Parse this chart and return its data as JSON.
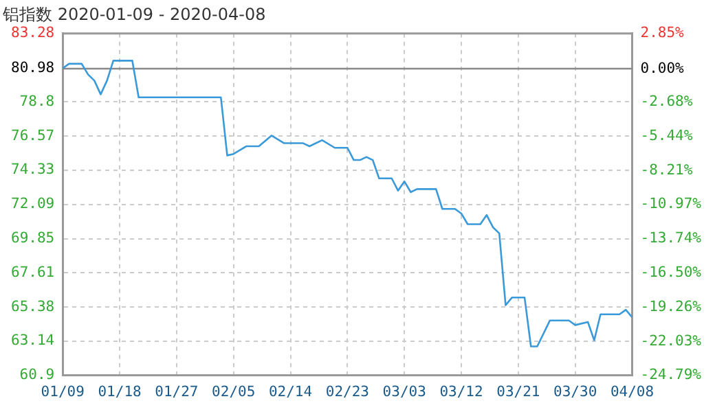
{
  "chart_data": {
    "type": "line",
    "title": "铝指数 2020-01-09 - 2020-04-08",
    "x": [
      "2020-01-09",
      "2020-01-10",
      "2020-01-12",
      "2020-01-13",
      "2020-01-14",
      "2020-01-15",
      "2020-01-16",
      "2020-01-17",
      "2020-01-20",
      "2020-01-21",
      "2020-02-03",
      "2020-02-04",
      "2020-02-05",
      "2020-02-07",
      "2020-02-09",
      "2020-02-11",
      "2020-02-13",
      "2020-02-16",
      "2020-02-17",
      "2020-02-19",
      "2020-02-21",
      "2020-02-23",
      "2020-02-24",
      "2020-02-25",
      "2020-02-26",
      "2020-02-27",
      "2020-02-28",
      "2020-03-01",
      "2020-03-02",
      "2020-03-03",
      "2020-03-04",
      "2020-03-05",
      "2020-03-08",
      "2020-03-09",
      "2020-03-11",
      "2020-03-12",
      "2020-03-13",
      "2020-03-15",
      "2020-03-16",
      "2020-03-17",
      "2020-03-18",
      "2020-03-19",
      "2020-03-20",
      "2020-03-22",
      "2020-03-23",
      "2020-03-24",
      "2020-03-26",
      "2020-03-29",
      "2020-03-30",
      "2020-04-01",
      "2020-04-02",
      "2020-04-03",
      "2020-04-06",
      "2020-04-07",
      "2020-04-08"
    ],
    "series": [
      {
        "color": "#3a9ad9",
        "values": [
          81.0,
          81.3,
          81.3,
          80.6,
          80.2,
          79.3,
          80.2,
          81.5,
          81.5,
          79.1,
          79.1,
          75.3,
          75.4,
          75.9,
          75.9,
          76.6,
          76.1,
          76.1,
          75.9,
          76.3,
          75.8,
          75.8,
          75.0,
          75.0,
          75.2,
          75.0,
          73.8,
          73.8,
          73.0,
          73.6,
          72.9,
          73.1,
          73.1,
          71.8,
          71.8,
          71.5,
          70.8,
          70.8,
          71.4,
          70.6,
          70.2,
          65.5,
          66.0,
          66.0,
          62.8,
          62.8,
          64.5,
          64.5,
          64.2,
          64.4,
          63.2,
          64.9,
          64.9,
          65.2,
          64.7
        ]
      }
    ],
    "xlim": [
      "2020-01-09",
      "2020-04-08"
    ],
    "xticks": [
      {
        "value": "2020-01-09",
        "label": "01/09"
      },
      {
        "value": "2020-01-18",
        "label": "01/18"
      },
      {
        "value": "2020-01-27",
        "label": "01/27"
      },
      {
        "value": "2020-02-05",
        "label": "02/05"
      },
      {
        "value": "2020-02-14",
        "label": "02/14"
      },
      {
        "value": "2020-02-23",
        "label": "02/23"
      },
      {
        "value": "2020-03-03",
        "label": "03/03"
      },
      {
        "value": "2020-03-12",
        "label": "03/12"
      },
      {
        "value": "2020-03-21",
        "label": "03/21"
      },
      {
        "value": "2020-03-30",
        "label": "03/30"
      },
      {
        "value": "2020-04-08",
        "label": "04/08"
      }
    ],
    "ylim": [
      60.9,
      83.28
    ],
    "yticks": [
      60.9,
      63.14,
      65.38,
      67.61,
      69.85,
      72.09,
      74.33,
      76.57,
      78.8,
      80.98,
      83.28
    ],
    "y2lim": [
      -24.79,
      2.85
    ],
    "y2ticks": [
      {
        "value": -24.79,
        "label": "-24.79%"
      },
      {
        "value": -22.03,
        "label": "-22.03%"
      },
      {
        "value": -19.26,
        "label": "-19.26%"
      },
      {
        "value": -16.5,
        "label": "-16.50%"
      },
      {
        "value": -13.74,
        "label": "-13.74%"
      },
      {
        "value": -10.97,
        "label": "-10.97%"
      },
      {
        "value": -8.21,
        "label": "-8.21%"
      },
      {
        "value": -5.44,
        "label": "-5.44%"
      },
      {
        "value": -2.68,
        "label": "-2.68%"
      },
      {
        "value": 0,
        "label": "0.00%"
      },
      {
        "value": 2.85,
        "label": "2.85%"
      }
    ],
    "ref_lines": [
      {
        "axis": "y",
        "value": 80.98,
        "color": "#888888"
      }
    ],
    "grid": true,
    "legend": false,
    "marker": "none",
    "line_style": "solid"
  }
}
